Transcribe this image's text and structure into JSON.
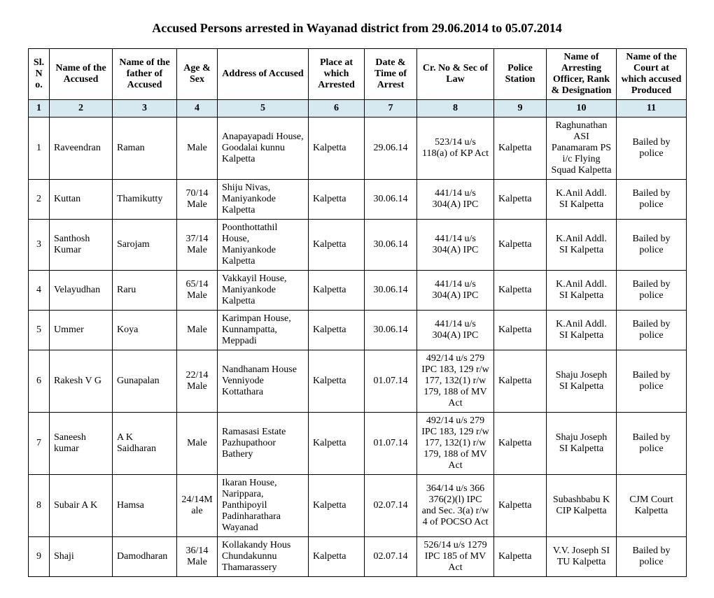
{
  "title": "Accused Persons arrested in  Wayanad  district from 29.06.2014 to 05.07.2014",
  "headers": {
    "c1": "Sl. No.",
    "c2": "Name of the Accused",
    "c3": "Name of the father of Accused",
    "c4": "Age & Sex",
    "c5": "Address of Accused",
    "c6": "Place at which Arrested",
    "c7": "Date & Time of Arrest",
    "c8": "Cr. No & Sec of Law",
    "c9": "Police Station",
    "c10": "Name of Arresting Officer, Rank & Designation",
    "c11": "Name of the Court at which accused Produced"
  },
  "numbers": {
    "n1": "1",
    "n2": "2",
    "n3": "3",
    "n4": "4",
    "n5": "5",
    "n6": "6",
    "n7": "7",
    "n8": "8",
    "n9": "9",
    "n10": "10",
    "n11": "11"
  },
  "rows": [
    {
      "sl": "1",
      "accused": "Raveendran",
      "father": "Raman",
      "age": "Male",
      "address": "Anapayapadi House, Goodalai kunnu Kalpetta",
      "place": "Kalpetta",
      "date": "29.06.14",
      "crno": "523/14 u/s 118(a) of KP Act",
      "station": "Kalpetta",
      "officer": "Raghunathan ASI Panamaram PS i/c Flying Squad Kalpetta",
      "court": "Bailed by police"
    },
    {
      "sl": "2",
      "accused": "Kuttan",
      "father": "Thamikutty",
      "age": "70/14 Male",
      "address": "Shiju Nivas, Maniyankode Kalpetta",
      "place": "Kalpetta",
      "date": "30.06.14",
      "crno": "441/14 u/s 304(A) IPC",
      "station": "Kalpetta",
      "officer": "K.Anil Addl. SI Kalpetta",
      "court": "Bailed by police"
    },
    {
      "sl": "3",
      "accused": "Santhosh Kumar",
      "father": "Sarojam",
      "age": "37/14 Male",
      "address": "Poonthottathil House, Maniyankode Kalpetta",
      "place": "Kalpetta",
      "date": "30.06.14",
      "crno": "441/14 u/s 304(A) IPC",
      "station": "Kalpetta",
      "officer": "K.Anil Addl. SI Kalpetta",
      "court": "Bailed by police"
    },
    {
      "sl": "4",
      "accused": "Velayudhan",
      "father": "Raru",
      "age": "65/14 Male",
      "address": "Vakkayil House, Maniyankode Kalpetta",
      "place": "Kalpetta",
      "date": "30.06.14",
      "crno": "441/14 u/s 304(A) IPC",
      "station": "Kalpetta",
      "officer": "K.Anil Addl. SI Kalpetta",
      "court": "Bailed by police"
    },
    {
      "sl": "5",
      "accused": "Ummer",
      "father": "Koya",
      "age": "Male",
      "address": "Karimpan House, Kunnampatta, Meppadi",
      "place": "Kalpetta",
      "date": "30.06.14",
      "crno": "441/14 u/s 304(A) IPC",
      "station": "Kalpetta",
      "officer": "K.Anil Addl. SI Kalpetta",
      "court": "Bailed by police"
    },
    {
      "sl": "6",
      "accused": "Rakesh V G",
      "father": "Gunapalan",
      "age": "22/14 Male",
      "address": "Nandhanam House Venniyode Kottathara",
      "place": "Kalpetta",
      "date": "01.07.14",
      "crno": "492/14 u/s 279 IPC 183, 129 r/w 177, 132(1) r/w 179, 188  of MV Act",
      "station": "Kalpetta",
      "officer": "Shaju Joseph SI Kalpetta",
      "court": "Bailed by police"
    },
    {
      "sl": "7",
      "accused": "Saneesh kumar",
      "father": "A K Saidharan",
      "age": "Male",
      "address": "Ramasasi Estate Pazhupathoor Bathery",
      "place": "Kalpetta",
      "date": "01.07.14",
      "crno": "492/14 u/s 279 IPC 183, 129 r/w 177, 132(1) r/w 179, 188  of MV Act",
      "station": "Kalpetta",
      "officer": "Shaju Joseph SI Kalpetta",
      "court": "Bailed by police"
    },
    {
      "sl": "8",
      "accused": "Subair A K",
      "father": "Hamsa",
      "age": "24/14Male",
      "address": "Ikaran House, Narippara, Panthipoyil Padinharathara Wayanad",
      "place": "Kalpetta",
      "date": "02.07.14",
      "crno": "364/14 u/s 366 376(2)(l) IPC and Sec. 3(a) r/w 4 of POCSO Act",
      "station": "Kalpetta",
      "officer": "Subashbabu K CIP Kalpetta",
      "court": "CJM Court Kalpetta"
    },
    {
      "sl": "9",
      "accused": "Shaji",
      "father": "Damodharan",
      "age": "36/14 Male",
      "address": "Kollakandy Hous Chundakunnu Thamarassery",
      "place": "Kalpetta",
      "date": "02.07.14",
      "crno": "526/14 u/s 1279 IPC 185 of MV Act",
      "station": "Kalpetta",
      "officer": "V.V. Joseph SI TU Kalpetta",
      "court": "Bailed by police"
    }
  ]
}
